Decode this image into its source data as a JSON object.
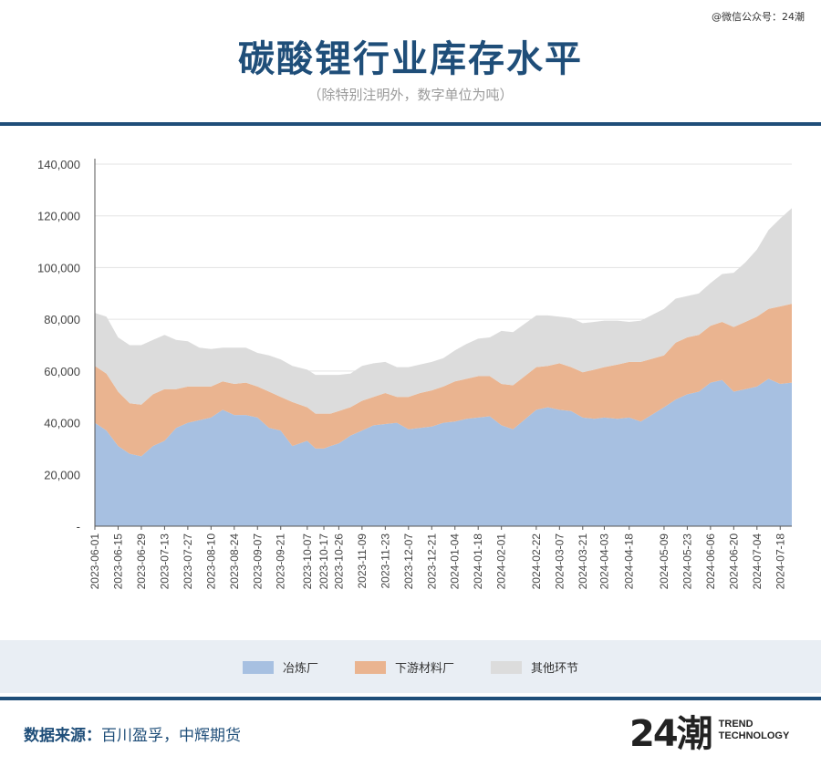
{
  "watermark": "@微信公众号：24潮",
  "title": "碳酸锂行业库存水平",
  "subtitle": "（除特别注明外，数字单位为吨）",
  "source_label": "数据来源：",
  "source_value": "百川盈孚，中辉期货",
  "logo": {
    "mark": "24潮",
    "line1": "TREND",
    "line2": "TECHNOLOGY"
  },
  "colors": {
    "brand": "#1f4e79",
    "smelter": "#a7c0e1",
    "downstream": "#eab490",
    "other": "#dcdcdc"
  },
  "legend": [
    "冶炼厂",
    "下游材料厂",
    "其他环节"
  ],
  "chart_data": {
    "type": "area",
    "stacked": true,
    "ylim": [
      0,
      140000
    ],
    "yticks": [
      "-",
      "20,000",
      "40,000",
      "60,000",
      "80,000",
      "100,000",
      "120,000",
      "140,000"
    ],
    "x_tick_labels": [
      "2023-06-01",
      "2023-06-15",
      "2023-06-29",
      "2023-07-13",
      "2023-07-27",
      "2023-08-10",
      "2023-08-24",
      "2023-09-07",
      "2023-09-21",
      "2023-10-07",
      "2023-10-17",
      "2023-10-26",
      "2023-11-09",
      "2023-11-23",
      "2023-12-07",
      "2023-12-21",
      "2024-01-04",
      "2024-01-18",
      "2024-02-01",
      "2024-02-22",
      "2024-03-07",
      "2024-03-21",
      "2024-04-03",
      "2024-04-18",
      "2024-05-09",
      "2024-05-23",
      "2024-06-06",
      "2024-06-20",
      "2024-07-04",
      "2024-07-18"
    ],
    "x": [
      "2023-06-01",
      "2023-06-08",
      "2023-06-15",
      "2023-06-22",
      "2023-06-29",
      "2023-07-06",
      "2023-07-13",
      "2023-07-20",
      "2023-07-27",
      "2023-08-03",
      "2023-08-10",
      "2023-08-17",
      "2023-08-24",
      "2023-08-31",
      "2023-09-07",
      "2023-09-14",
      "2023-09-21",
      "2023-09-28",
      "2023-10-07",
      "2023-10-12",
      "2023-10-17",
      "2023-10-21",
      "2023-10-26",
      "2023-11-02",
      "2023-11-09",
      "2023-11-16",
      "2023-11-23",
      "2023-11-30",
      "2023-12-07",
      "2023-12-14",
      "2023-12-21",
      "2023-12-28",
      "2024-01-04",
      "2024-01-11",
      "2024-01-18",
      "2024-01-25",
      "2024-02-01",
      "2024-02-08",
      "2024-02-22",
      "2024-02-29",
      "2024-03-07",
      "2024-03-14",
      "2024-03-21",
      "2024-03-28",
      "2024-04-03",
      "2024-04-11",
      "2024-04-18",
      "2024-04-25",
      "2024-05-09",
      "2024-05-16",
      "2024-05-23",
      "2024-05-30",
      "2024-06-06",
      "2024-06-13",
      "2024-06-20",
      "2024-06-27",
      "2024-07-04",
      "2024-07-11",
      "2024-07-18",
      "2024-07-25"
    ],
    "series": [
      {
        "name": "冶炼厂",
        "color": "#a7c0e1",
        "values": [
          40000,
          37000,
          31000,
          28000,
          27000,
          31000,
          33000,
          38000,
          40000,
          41000,
          42000,
          45000,
          43000,
          43000,
          42000,
          38000,
          37000,
          31000,
          33000,
          30000,
          30000,
          31000,
          32000,
          35000,
          37000,
          39000,
          39500,
          40000,
          37500,
          38000,
          38500,
          40000,
          40500,
          41500,
          42000,
          42500,
          39000,
          37500,
          45000,
          46000,
          45000,
          44500,
          42000,
          41500,
          42000,
          41500,
          42000,
          40500,
          46000,
          49000,
          51000,
          52000,
          55500,
          56500,
          52000,
          53000,
          54000,
          57000,
          55000,
          55500
        ]
      },
      {
        "name": "下游材料厂",
        "color": "#eab490",
        "values": [
          22000,
          22000,
          21000,
          19500,
          20000,
          20000,
          20000,
          15000,
          14000,
          13000,
          12000,
          11000,
          12000,
          12500,
          12000,
          14000,
          13000,
          17000,
          13000,
          13500,
          13500,
          12500,
          12500,
          11000,
          11500,
          11000,
          12000,
          10000,
          12500,
          13500,
          14000,
          14000,
          15500,
          15500,
          16000,
          15500,
          16000,
          17000,
          16500,
          16000,
          18000,
          17000,
          17500,
          19000,
          19500,
          21000,
          21500,
          23000,
          20000,
          22000,
          22000,
          22000,
          22000,
          22500,
          25000,
          26000,
          27000,
          27000,
          30000,
          30500
        ]
      },
      {
        "name": "其他环节",
        "color": "#dcdcdc",
        "values": [
          20500,
          22000,
          21000,
          22500,
          23000,
          21000,
          21000,
          19000,
          17500,
          15000,
          14500,
          13000,
          14000,
          13500,
          13000,
          14000,
          14500,
          14000,
          14500,
          15000,
          15000,
          15000,
          14000,
          13000,
          13500,
          13000,
          12000,
          11500,
          11500,
          11000,
          11000,
          11000,
          12000,
          13500,
          14500,
          15000,
          20500,
          20500,
          20000,
          19500,
          18000,
          19000,
          19000,
          18500,
          18000,
          17000,
          15500,
          16000,
          18000,
          17000,
          16000,
          16000,
          16500,
          18500,
          21000,
          23000,
          26000,
          30500,
          34000,
          37000
        ]
      }
    ]
  }
}
